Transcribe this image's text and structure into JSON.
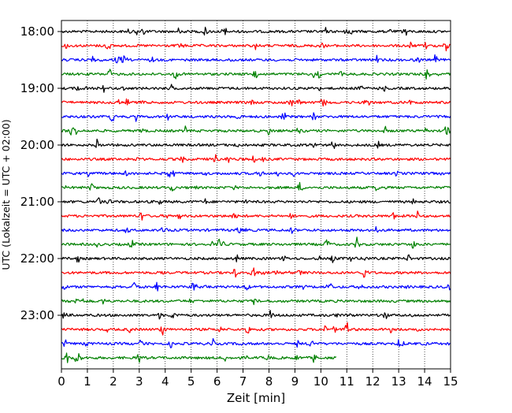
{
  "chart_data": {
    "type": "line",
    "xlabel": "Zeit  [min]",
    "ylabel": "UTC (Lokalzeit = UTC + 02:00)",
    "xlim": [
      0,
      15
    ],
    "x_ticks": [
      "0",
      "1",
      "2",
      "3",
      "4",
      "5",
      "6",
      "7",
      "8",
      "9",
      "10",
      "11",
      "12",
      "13",
      "14",
      "15"
    ],
    "y_tick_labels": [
      "18:00",
      "19:00",
      "20:00",
      "21:00",
      "22:00",
      "23:00"
    ],
    "grid": "vertical dotted lines at each minute",
    "trace_colors": [
      "#000000",
      "#ff0000",
      "#0000ff",
      "#008000"
    ],
    "trace_interval_minutes": 15,
    "traces": [
      {
        "start": "18:00",
        "color": "#000000",
        "end_minute": 15
      },
      {
        "start": "18:15",
        "color": "#ff0000",
        "end_minute": 15
      },
      {
        "start": "18:30",
        "color": "#0000ff",
        "end_minute": 15
      },
      {
        "start": "18:45",
        "color": "#008000",
        "end_minute": 15
      },
      {
        "start": "19:00",
        "color": "#000000",
        "end_minute": 15
      },
      {
        "start": "19:15",
        "color": "#ff0000",
        "end_minute": 15
      },
      {
        "start": "19:30",
        "color": "#0000ff",
        "end_minute": 15
      },
      {
        "start": "19:45",
        "color": "#008000",
        "end_minute": 15
      },
      {
        "start": "20:00",
        "color": "#000000",
        "end_minute": 15
      },
      {
        "start": "20:15",
        "color": "#ff0000",
        "end_minute": 15
      },
      {
        "start": "20:30",
        "color": "#0000ff",
        "end_minute": 15
      },
      {
        "start": "20:45",
        "color": "#008000",
        "end_minute": 15
      },
      {
        "start": "21:00",
        "color": "#000000",
        "end_minute": 15
      },
      {
        "start": "21:15",
        "color": "#ff0000",
        "end_minute": 15
      },
      {
        "start": "21:30",
        "color": "#0000ff",
        "end_minute": 15
      },
      {
        "start": "21:45",
        "color": "#008000",
        "end_minute": 15
      },
      {
        "start": "22:00",
        "color": "#000000",
        "end_minute": 15
      },
      {
        "start": "22:15",
        "color": "#ff0000",
        "end_minute": 15
      },
      {
        "start": "22:30",
        "color": "#0000ff",
        "end_minute": 15
      },
      {
        "start": "22:45",
        "color": "#008000",
        "end_minute": 15
      },
      {
        "start": "23:00",
        "color": "#000000",
        "end_minute": 15
      },
      {
        "start": "23:15",
        "color": "#ff0000",
        "end_minute": 15
      },
      {
        "start": "23:30",
        "color": "#0000ff",
        "end_minute": 15
      },
      {
        "start": "23:45",
        "color": "#008000",
        "end_minute": 10.6
      }
    ]
  }
}
